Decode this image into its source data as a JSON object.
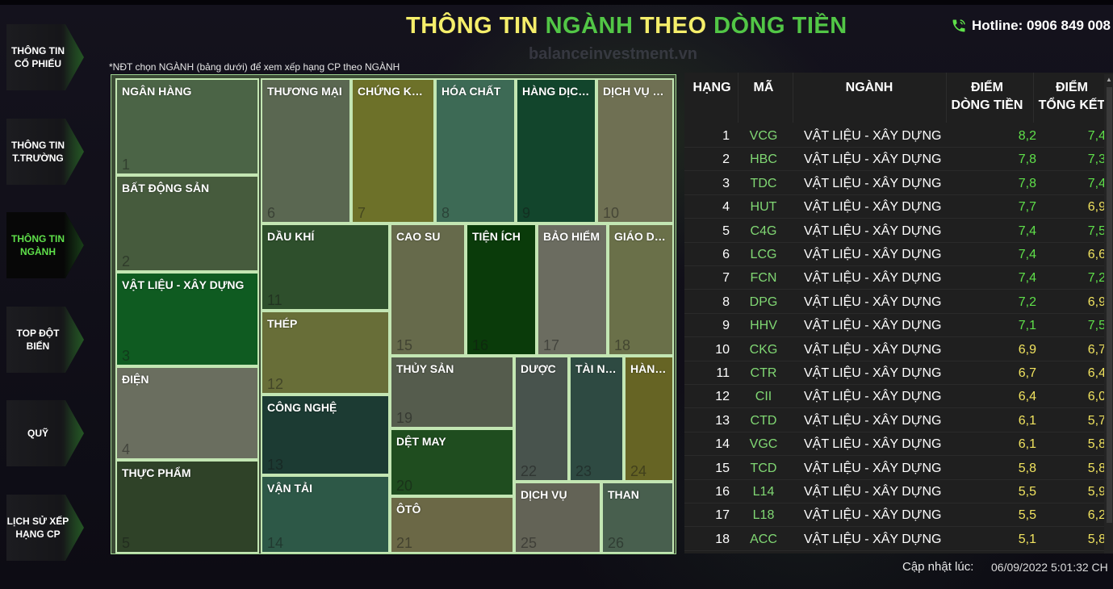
{
  "header": {
    "title_parts": [
      {
        "text": "THÔNG TIN",
        "color": "yellow"
      },
      {
        "text": "NGÀNH",
        "color": "green"
      },
      {
        "text": "THEO",
        "color": "yellow"
      },
      {
        "text": "DÒNG TIỀN",
        "color": "green"
      }
    ],
    "hotline_label": "Hotline: 0906 849 008",
    "hotline_icon": "phone-icon",
    "watermark": "balanceinvestment.vn",
    "note": "*NĐT chọn NGÀNH (bảng dưới) để xem xếp hạng CP theo NGÀNH"
  },
  "sidebar": {
    "items": [
      {
        "label1": "THÔNG TIN",
        "label2": "CỔ PHIẾU",
        "active": false
      },
      {
        "label1": "THÔNG TIN",
        "label2": "T.TRƯỜNG",
        "active": false
      },
      {
        "label1": "THÔNG TIN",
        "label2": "NGÀNH",
        "active": true
      },
      {
        "label1": "TOP ĐỘT",
        "label2": "BIẾN",
        "active": false
      },
      {
        "label1": "QUỸ",
        "label2": "",
        "active": false
      },
      {
        "label1": "LỊCH SỬ XẾP",
        "label2": "HẠNG CP",
        "active": false
      }
    ]
  },
  "treemap": {
    "tiles": [
      {
        "name": "NGÂN HÀNG",
        "rank": "1",
        "color": "#4b6446"
      },
      {
        "name": "BẤT ĐỘNG SẢN",
        "rank": "2",
        "color": "#465b3d"
      },
      {
        "name": "VẬT LIỆU - XÂY DỰNG",
        "rank": "3",
        "color": "#0f5b21"
      },
      {
        "name": "ĐIỆN",
        "rank": "4",
        "color": "#6a6e5f"
      },
      {
        "name": "THỰC PHẨM",
        "rank": "5",
        "color": "#2f4228"
      },
      {
        "name": "THƯƠNG MẠI",
        "rank": "6",
        "color": "#5a6751"
      },
      {
        "name": "CHỨNG KHOÁN",
        "rank": "7",
        "color": "#6d7129"
      },
      {
        "name": "HÓA CHẤT",
        "rank": "8",
        "color": "#3d6a55"
      },
      {
        "name": "HÀNG DỊCH VỤ",
        "rank": "9",
        "color": "#12452c"
      },
      {
        "name": "DỊCH VỤ TÀI CHÍNH",
        "rank": "10",
        "color": "#6f7053"
      },
      {
        "name": "DẦU KHÍ",
        "rank": "11",
        "color": "#2e4f2c"
      },
      {
        "name": "THÉP",
        "rank": "12",
        "color": "#686e38"
      },
      {
        "name": "CÔNG NGHỆ",
        "rank": "13",
        "color": "#1c3b33"
      },
      {
        "name": "VẬN TẢI",
        "rank": "14",
        "color": "#2d5847"
      },
      {
        "name": "CAO SU",
        "rank": "15",
        "color": "#666a4b"
      },
      {
        "name": "TIỆN ÍCH",
        "rank": "16",
        "color": "#0a3b0a"
      },
      {
        "name": "BẢO HIỂM",
        "rank": "17",
        "color": "#6b6c60"
      },
      {
        "name": "GIÁO DỤC",
        "rank": "18",
        "color": "#6a7049"
      },
      {
        "name": "THỦY SẢN",
        "rank": "19",
        "color": "#555c4d"
      },
      {
        "name": "DỆT MAY",
        "rank": "20",
        "color": "#1f4d1f"
      },
      {
        "name": "ÔTÔ",
        "rank": "21",
        "color": "#6b6846"
      },
      {
        "name": "DƯỢC",
        "rank": "22",
        "color": "#48534d"
      },
      {
        "name": "TÀI NGUYÊN",
        "rank": "23",
        "color": "#2e4a42"
      },
      {
        "name": "HÀNG TIÊU DÙNG",
        "rank": "24",
        "color": "#666424"
      },
      {
        "name": "DỊCH VỤ",
        "rank": "25",
        "color": "#636356"
      },
      {
        "name": "THAN",
        "rank": "26",
        "color": "#485f4e"
      }
    ]
  },
  "table": {
    "headers": {
      "rank": "HẠNG",
      "code": "MÃ",
      "industry": "NGÀNH",
      "flow1": "ĐIỂM",
      "flow2": "DÒNG TIỀN",
      "total1": "ĐIỂM",
      "total2": "TỔNG KẾT"
    },
    "rows": [
      {
        "rank": "1",
        "code": "VCG",
        "industry": "VẬT LIỆU - XÂY DỰNG",
        "flow": "8,2",
        "total": "7,4"
      },
      {
        "rank": "2",
        "code": "HBC",
        "industry": "VẬT LIỆU - XÂY DỰNG",
        "flow": "7,8",
        "total": "7,3"
      },
      {
        "rank": "3",
        "code": "TDC",
        "industry": "VẬT LIỆU - XÂY DỰNG",
        "flow": "7,8",
        "total": "7,4"
      },
      {
        "rank": "4",
        "code": "HUT",
        "industry": "VẬT LIỆU - XÂY DỰNG",
        "flow": "7,7",
        "total": "6,9"
      },
      {
        "rank": "5",
        "code": "C4G",
        "industry": "VẬT LIỆU - XÂY DỰNG",
        "flow": "7,4",
        "total": "7,5"
      },
      {
        "rank": "6",
        "code": "LCG",
        "industry": "VẬT LIỆU - XÂY DỰNG",
        "flow": "7,4",
        "total": "6,6"
      },
      {
        "rank": "7",
        "code": "FCN",
        "industry": "VẬT LIỆU - XÂY DỰNG",
        "flow": "7,4",
        "total": "7,2"
      },
      {
        "rank": "8",
        "code": "DPG",
        "industry": "VẬT LIỆU - XÂY DỰNG",
        "flow": "7,2",
        "total": "6,9"
      },
      {
        "rank": "9",
        "code": "HHV",
        "industry": "VẬT LIỆU - XÂY DỰNG",
        "flow": "7,1",
        "total": "7,5"
      },
      {
        "rank": "10",
        "code": "CKG",
        "industry": "VẬT LIỆU - XÂY DỰNG",
        "flow": "6,9",
        "total": "6,7"
      },
      {
        "rank": "11",
        "code": "CTR",
        "industry": "VẬT LIỆU - XÂY DỰNG",
        "flow": "6,7",
        "total": "6,4"
      },
      {
        "rank": "12",
        "code": "CII",
        "industry": "VẬT LIỆU - XÂY DỰNG",
        "flow": "6,4",
        "total": "6,0"
      },
      {
        "rank": "13",
        "code": "CTD",
        "industry": "VẬT LIỆU - XÂY DỰNG",
        "flow": "6,1",
        "total": "5,7"
      },
      {
        "rank": "14",
        "code": "VGC",
        "industry": "VẬT LIỆU - XÂY DỰNG",
        "flow": "6,1",
        "total": "5,8"
      },
      {
        "rank": "15",
        "code": "TCD",
        "industry": "VẬT LIỆU - XÂY DỰNG",
        "flow": "5,8",
        "total": "5,8"
      },
      {
        "rank": "16",
        "code": "L14",
        "industry": "VẬT LIỆU - XÂY DỰNG",
        "flow": "5,5",
        "total": "5,9"
      },
      {
        "rank": "17",
        "code": "L18",
        "industry": "VẬT LIỆU - XÂY DỰNG",
        "flow": "5,5",
        "total": "6,2"
      },
      {
        "rank": "18",
        "code": "ACC",
        "industry": "VẬT LIỆU - XÂY DỰNG",
        "flow": "5,1",
        "total": "5,8"
      }
    ]
  },
  "footer": {
    "updated_label": "Cập nhật lúc:",
    "updated_value": "06/09/2022 5:01:32 CH"
  },
  "colors": {
    "yellow": "#f5ee6a",
    "green": "#52c646",
    "score_green": "#5fe04a",
    "score_yellow": "#f1e35f"
  }
}
